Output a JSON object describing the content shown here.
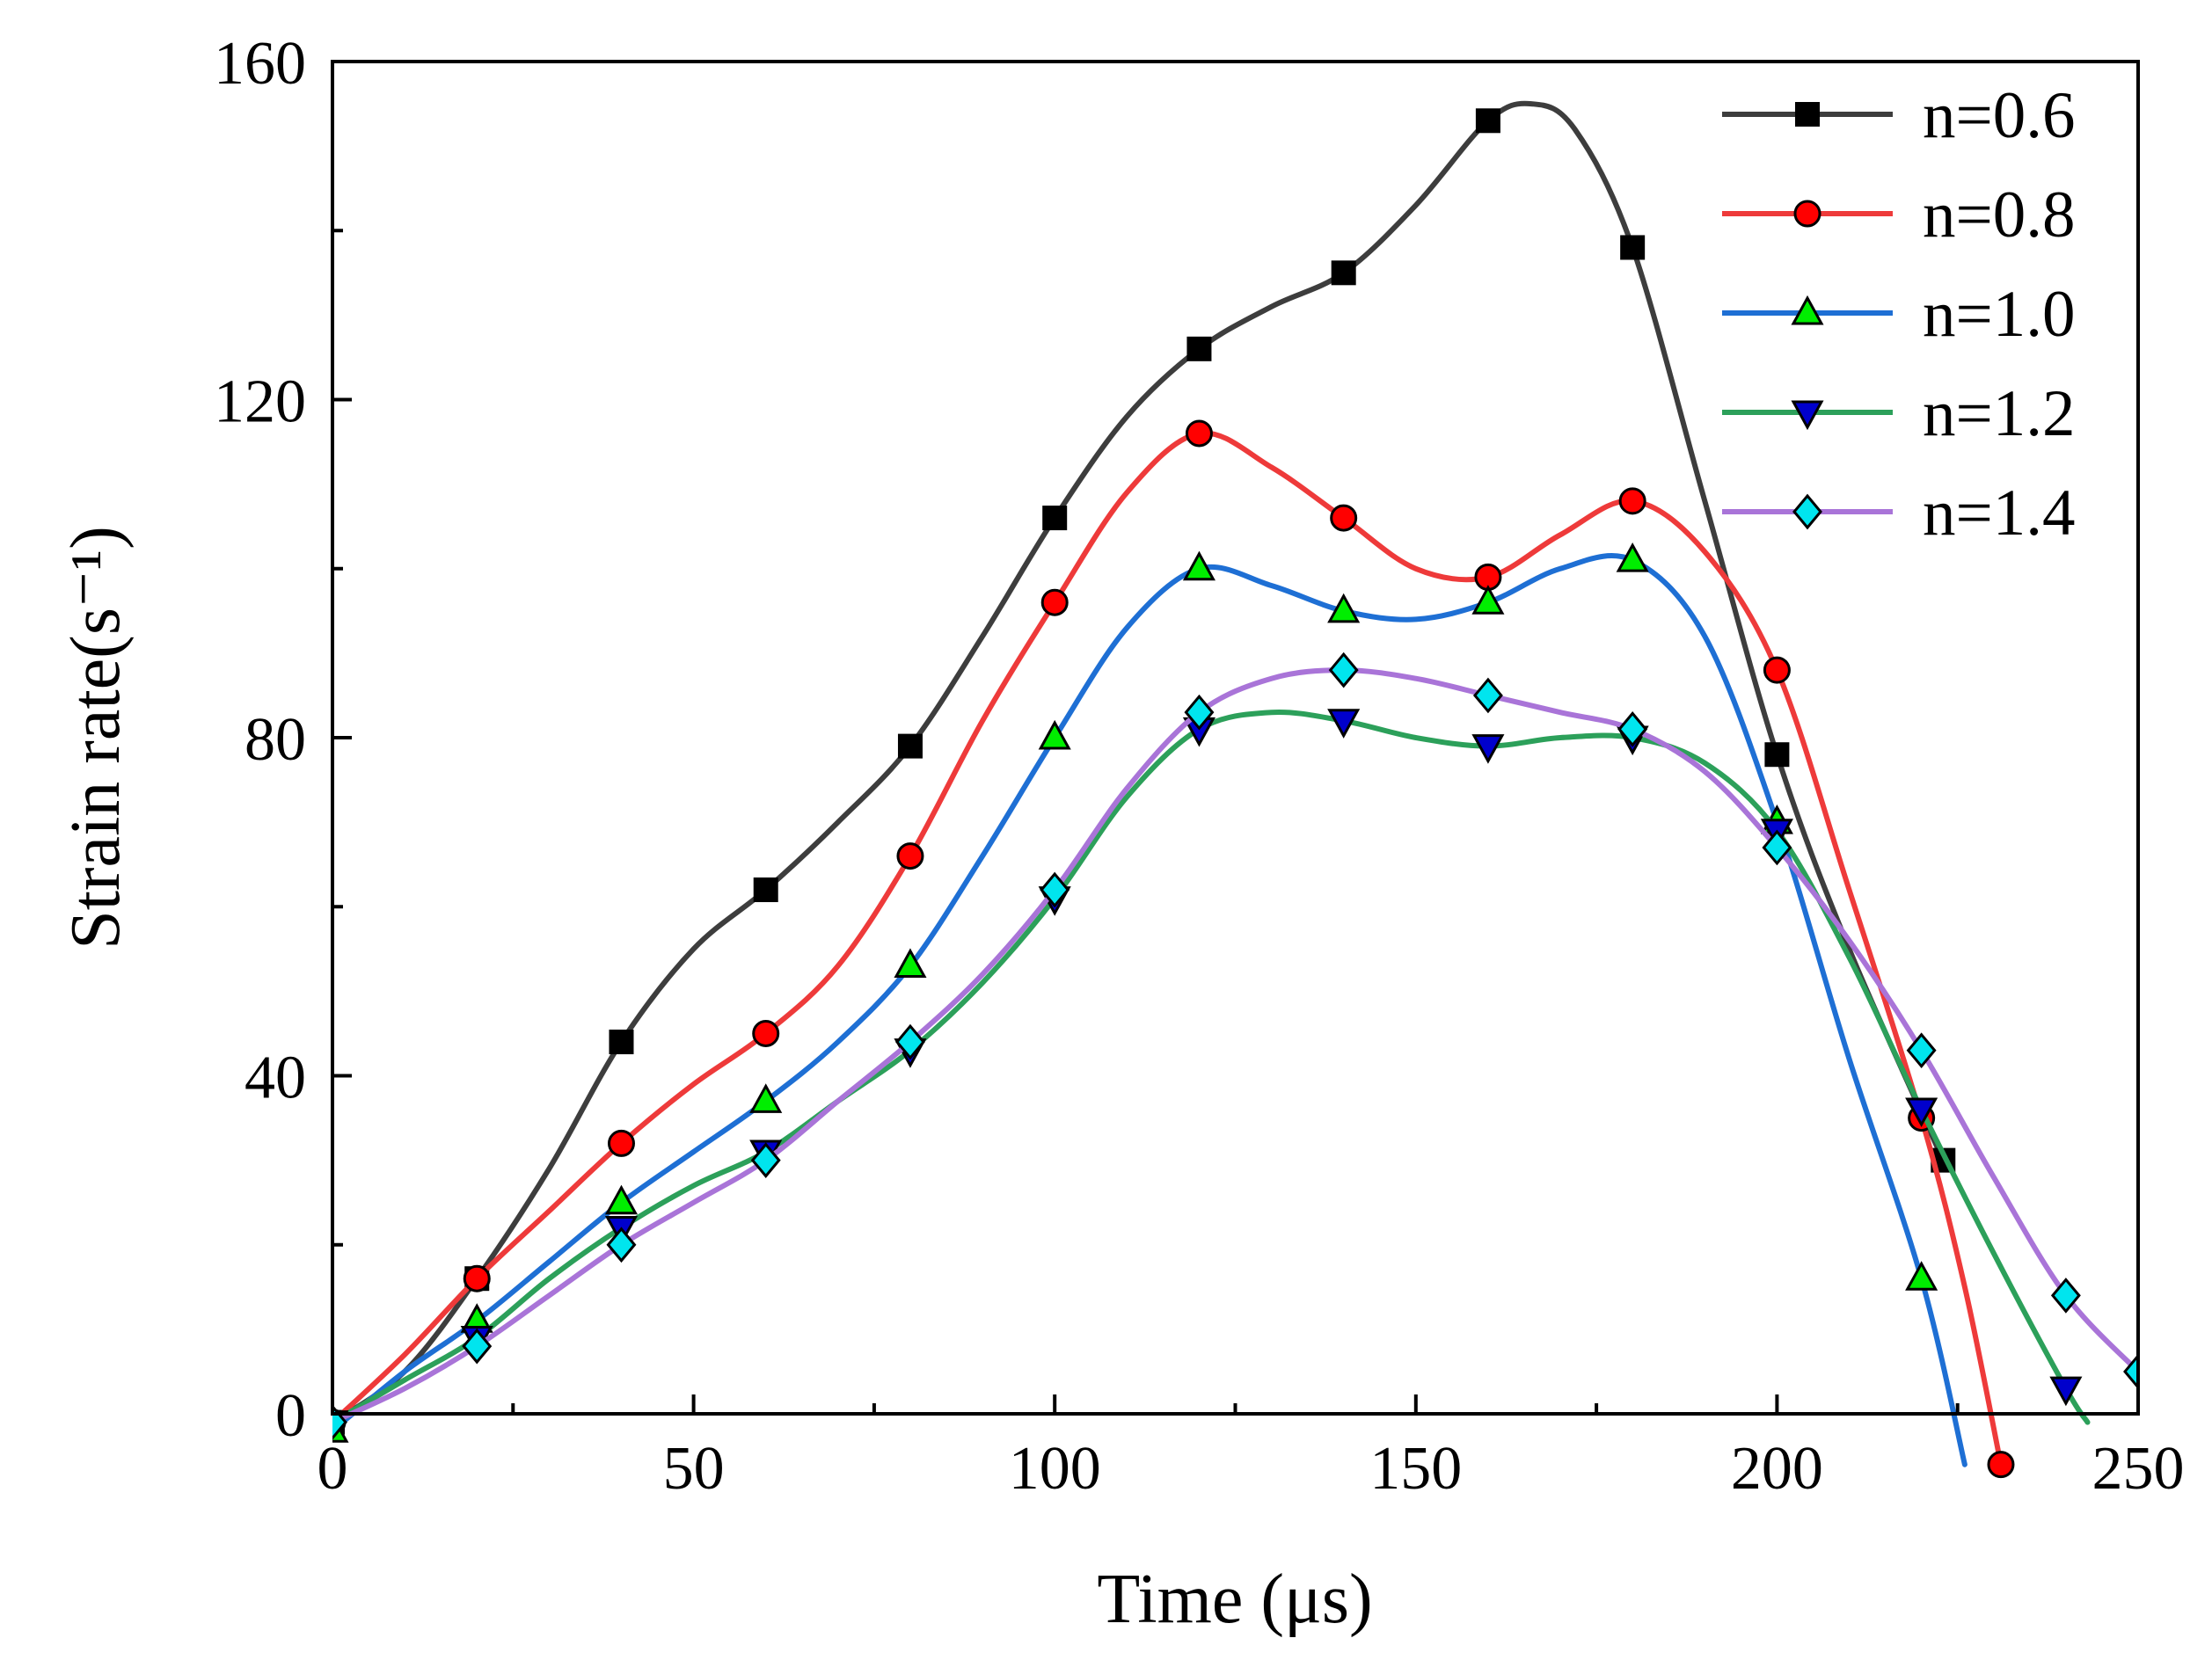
{
  "chart_data": {
    "type": "line",
    "title": "",
    "xlabel": "Time (μs)",
    "ylabel": "Strain rate(s⁻¹)",
    "xlim": [
      0,
      250
    ],
    "ylim": [
      0,
      160
    ],
    "x_ticks": [
      0,
      50,
      100,
      150,
      200,
      250
    ],
    "y_ticks": [
      0,
      40,
      80,
      120,
      160
    ],
    "grid": false,
    "legend_position": "top-right",
    "series": [
      {
        "name": "n=0.6",
        "color": "#3d3d3d",
        "marker": "square",
        "marker_color": "#000000",
        "x": [
          0,
          20,
          40,
          60,
          80,
          100,
          120,
          140,
          160,
          180,
          200,
          223
        ],
        "values": [
          -1,
          16,
          44,
          62,
          79,
          106,
          126,
          135,
          153,
          138,
          78,
          30
        ],
        "curve": [
          [
            0,
            -1
          ],
          [
            10,
            5
          ],
          [
            20,
            16
          ],
          [
            30,
            29
          ],
          [
            40,
            44
          ],
          [
            50,
            55
          ],
          [
            60,
            62
          ],
          [
            70,
            70
          ],
          [
            80,
            79
          ],
          [
            90,
            92
          ],
          [
            100,
            106
          ],
          [
            110,
            118
          ],
          [
            120,
            126
          ],
          [
            130,
            131
          ],
          [
            140,
            135
          ],
          [
            150,
            143
          ],
          [
            160,
            153
          ],
          [
            166,
            155
          ],
          [
            172,
            152
          ],
          [
            180,
            138
          ],
          [
            190,
            108
          ],
          [
            200,
            78
          ],
          [
            210,
            55
          ],
          [
            223,
            30
          ]
        ]
      },
      {
        "name": "n=0.8",
        "color": "#ee3a3a",
        "marker": "circle",
        "marker_color": "#ff0000",
        "x": [
          0,
          20,
          40,
          60,
          80,
          100,
          120,
          140,
          160,
          180,
          200,
          220,
          231
        ],
        "values": [
          -1,
          16,
          32,
          45,
          66,
          96,
          116,
          106,
          99,
          108,
          88,
          35,
          -6
        ],
        "curve": [
          [
            0,
            -1
          ],
          [
            10,
            7
          ],
          [
            20,
            16
          ],
          [
            30,
            24
          ],
          [
            40,
            32
          ],
          [
            50,
            39
          ],
          [
            60,
            45
          ],
          [
            70,
            53
          ],
          [
            80,
            66
          ],
          [
            90,
            82
          ],
          [
            100,
            96
          ],
          [
            110,
            109
          ],
          [
            120,
            116
          ],
          [
            130,
            112
          ],
          [
            140,
            106
          ],
          [
            150,
            100
          ],
          [
            160,
            99
          ],
          [
            170,
            104
          ],
          [
            180,
            108
          ],
          [
            190,
            102
          ],
          [
            200,
            88
          ],
          [
            210,
            62
          ],
          [
            220,
            35
          ],
          [
            226,
            15
          ],
          [
            231,
            -6
          ]
        ]
      },
      {
        "name": "n=1.0",
        "color": "#1e6fd4",
        "marker": "triangle-up",
        "marker_color": "#00ee00",
        "x": [
          0,
          20,
          40,
          60,
          80,
          100,
          120,
          140,
          160,
          180,
          200,
          220
        ],
        "values": [
          -2,
          11,
          25,
          37,
          53,
          80,
          100,
          95,
          96,
          101,
          70,
          16
        ],
        "curve": [
          [
            0,
            -2
          ],
          [
            10,
            5
          ],
          [
            20,
            11
          ],
          [
            30,
            18
          ],
          [
            40,
            25
          ],
          [
            50,
            31
          ],
          [
            60,
            37
          ],
          [
            70,
            44
          ],
          [
            80,
            53
          ],
          [
            90,
            66
          ],
          [
            100,
            80
          ],
          [
            110,
            93
          ],
          [
            120,
            100
          ],
          [
            130,
            98
          ],
          [
            140,
            95
          ],
          [
            150,
            94
          ],
          [
            160,
            96
          ],
          [
            170,
            100
          ],
          [
            180,
            101
          ],
          [
            190,
            92
          ],
          [
            200,
            70
          ],
          [
            210,
            42
          ],
          [
            220,
            16
          ],
          [
            226,
            -6
          ]
        ]
      },
      {
        "name": "n=1.2",
        "color": "#2ca05a",
        "marker": "triangle-down",
        "marker_color": "#0000cc",
        "x": [
          0,
          20,
          40,
          60,
          80,
          100,
          120,
          140,
          160,
          180,
          200,
          220,
          240
        ],
        "values": [
          -1,
          9,
          22,
          31,
          43,
          61,
          81,
          82,
          79,
          80,
          69,
          36,
          3
        ],
        "curve": [
          [
            0,
            -1
          ],
          [
            10,
            4
          ],
          [
            20,
            9
          ],
          [
            30,
            16
          ],
          [
            40,
            22
          ],
          [
            50,
            27
          ],
          [
            60,
            31
          ],
          [
            70,
            37
          ],
          [
            80,
            43
          ],
          [
            90,
            51
          ],
          [
            100,
            61
          ],
          [
            110,
            73
          ],
          [
            120,
            81
          ],
          [
            130,
            83
          ],
          [
            140,
            82
          ],
          [
            150,
            80
          ],
          [
            160,
            79
          ],
          [
            170,
            80
          ],
          [
            180,
            80
          ],
          [
            190,
            77
          ],
          [
            200,
            69
          ],
          [
            210,
            54
          ],
          [
            220,
            36
          ],
          [
            230,
            19
          ],
          [
            240,
            3
          ],
          [
            243,
            -1
          ]
        ]
      },
      {
        "name": "n=1.4",
        "color": "#a974d8",
        "marker": "diamond",
        "marker_color": "#00e5ee",
        "x": [
          0,
          20,
          40,
          60,
          80,
          100,
          120,
          140,
          160,
          180,
          200,
          220,
          240,
          250
        ],
        "values": [
          -1,
          8,
          20,
          30,
          44,
          62,
          83,
          88,
          85,
          81,
          67,
          43,
          14,
          5
        ],
        "curve": [
          [
            0,
            -1
          ],
          [
            10,
            3
          ],
          [
            20,
            8
          ],
          [
            30,
            14
          ],
          [
            40,
            20
          ],
          [
            50,
            25
          ],
          [
            60,
            30
          ],
          [
            70,
            37
          ],
          [
            80,
            44
          ],
          [
            90,
            52
          ],
          [
            100,
            62
          ],
          [
            110,
            74
          ],
          [
            120,
            83
          ],
          [
            130,
            87
          ],
          [
            140,
            88
          ],
          [
            150,
            87
          ],
          [
            160,
            85
          ],
          [
            170,
            83
          ],
          [
            180,
            81
          ],
          [
            190,
            76
          ],
          [
            200,
            67
          ],
          [
            210,
            56
          ],
          [
            220,
            43
          ],
          [
            230,
            28
          ],
          [
            240,
            14
          ],
          [
            250,
            5
          ]
        ]
      }
    ]
  }
}
